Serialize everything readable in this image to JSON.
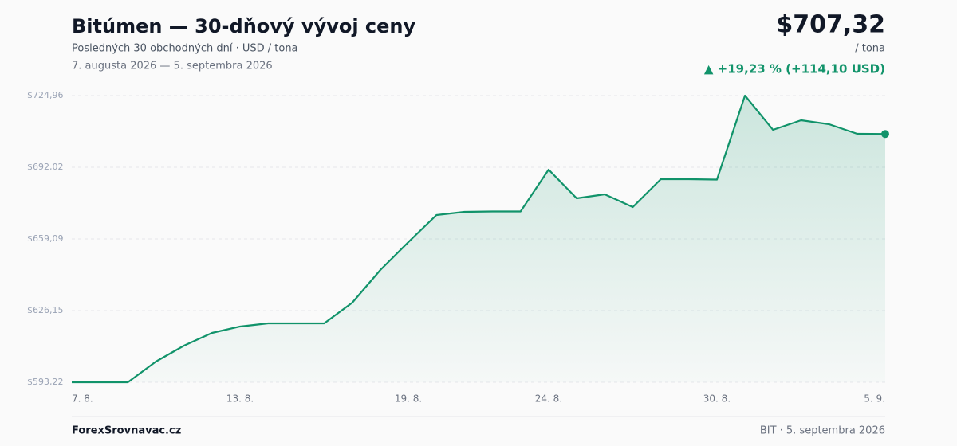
{
  "chart_data": {
    "type": "line",
    "title": "Bitúmen — 30-dňový vývoj ceny",
    "subtitle": "Posledných 30 obchodných dní · USD / tona",
    "date_range": "7. augusta 2026 — 5. septembra 2026",
    "categories": [
      "7. 8.",
      null,
      null,
      null,
      null,
      null,
      "13. 8.",
      null,
      null,
      null,
      null,
      null,
      "19. 8.",
      null,
      null,
      null,
      null,
      "24. 8.",
      null,
      null,
      null,
      null,
      null,
      "30. 8.",
      null,
      null,
      null,
      null,
      null,
      "5. 9."
    ],
    "values": [
      593.22,
      593.22,
      593.22,
      602.73,
      610.05,
      615.91,
      618.84,
      620.3,
      620.3,
      620.3,
      629.81,
      644.82,
      657.63,
      670.07,
      671.53,
      671.72,
      671.72,
      690.93,
      677.75,
      679.58,
      673.73,
      686.53,
      686.53,
      686.35,
      724.96,
      709.22,
      713.61,
      711.79,
      707.39,
      707.32
    ],
    "color": "#11936a",
    "ylim": [
      593.22,
      724.96
    ],
    "yticks": [
      {
        "value": 593.22,
        "label": "$593,22"
      },
      {
        "value": 626.15,
        "label": "$626,15"
      },
      {
        "value": 659.09,
        "label": "$659,09"
      },
      {
        "value": 692.02,
        "label": "$692,02"
      },
      {
        "value": 724.96,
        "label": "$724,96"
      }
    ],
    "grid": true
  },
  "header": {
    "price": "$707,32",
    "unit": "/ tona",
    "change": "▲ +19,23 % (+114,10 USD)"
  },
  "footer": {
    "brand": "ForexSrovnavac.cz",
    "source": "BIT · 5. septembra 2026"
  }
}
